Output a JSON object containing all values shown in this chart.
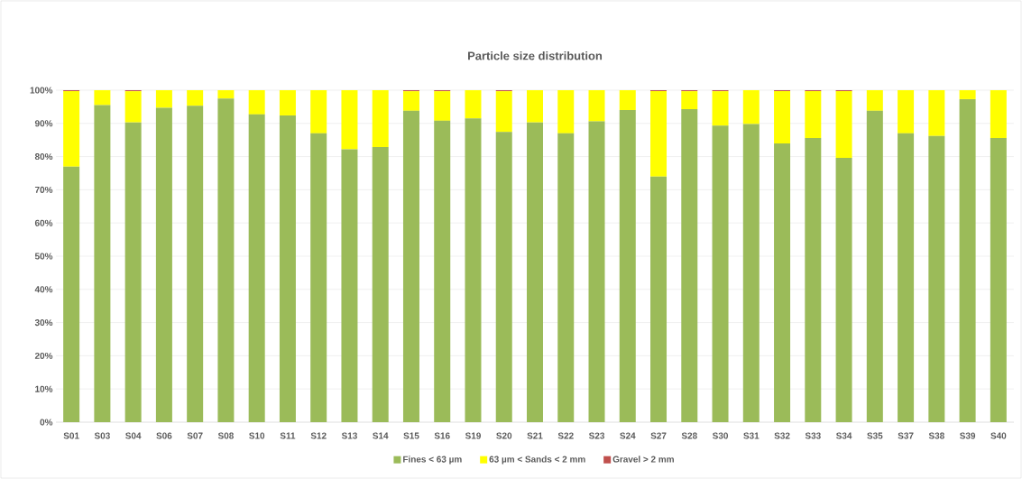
{
  "chart_data": {
    "type": "bar",
    "title": "Particle size distribution",
    "stacked": true,
    "grid": "y",
    "legend": "bottom",
    "categories": [
      "S01",
      "S03",
      "S04",
      "S06",
      "S07",
      "S08",
      "S10",
      "S11",
      "S12",
      "S13",
      "S14",
      "S15",
      "S16",
      "S19",
      "S20",
      "S21",
      "S22",
      "S23",
      "S24",
      "S27",
      "S28",
      "S30",
      "S31",
      "S32",
      "S33",
      "S34",
      "S35",
      "S37",
      "S38",
      "S39",
      "S40"
    ],
    "ylim": [
      0,
      100
    ],
    "yticks": [
      {
        "value": 0,
        "label": "0%"
      },
      {
        "value": 10,
        "label": "10%"
      },
      {
        "value": 20,
        "label": "20%"
      },
      {
        "value": 30,
        "label": "30%"
      },
      {
        "value": 40,
        "label": "40%"
      },
      {
        "value": 50,
        "label": "50%"
      },
      {
        "value": 60,
        "label": "60%"
      },
      {
        "value": 70,
        "label": "70%"
      },
      {
        "value": 80,
        "label": "80%"
      },
      {
        "value": 90,
        "label": "90%"
      },
      {
        "value": 100,
        "label": "100%"
      }
    ],
    "series": [
      {
        "name": "Fines < 63 µm",
        "color": "#9bbb59",
        "values": [
          77,
          95.5,
          90.3,
          94.7,
          95.3,
          97.5,
          92.7,
          92.4,
          87,
          82.2,
          82.9,
          93.8,
          90.8,
          91.5,
          87.4,
          90.3,
          87,
          90.6,
          94,
          74,
          94.3,
          89.3,
          89.8,
          84,
          85.6,
          79.6,
          93.8,
          87,
          86.2,
          97.3,
          85.6
        ]
      },
      {
        "name": "63 µm < Sands < 2 mm",
        "color": "#ffff00",
        "values": [
          22.7,
          4.5,
          9.4,
          5.3,
          4.7,
          2.5,
          7.3,
          7.6,
          13,
          17.8,
          17.1,
          5.9,
          8.9,
          8.5,
          12.3,
          9.7,
          13,
          9.4,
          6,
          25.7,
          5.4,
          10.4,
          10.2,
          15.7,
          14.1,
          20.1,
          6.2,
          13,
          13.8,
          2.7,
          14.4
        ]
      },
      {
        "name": "Gravel > 2 mm",
        "color": "#c0504d",
        "values": [
          0.3,
          0,
          0.3,
          0,
          0,
          0,
          0,
          0,
          0,
          0,
          0,
          0.3,
          0.3,
          0,
          0.3,
          0,
          0,
          0,
          0,
          0.3,
          0.3,
          0.3,
          0,
          0.3,
          0.3,
          0.3,
          0,
          0,
          0,
          0,
          0
        ]
      }
    ]
  }
}
